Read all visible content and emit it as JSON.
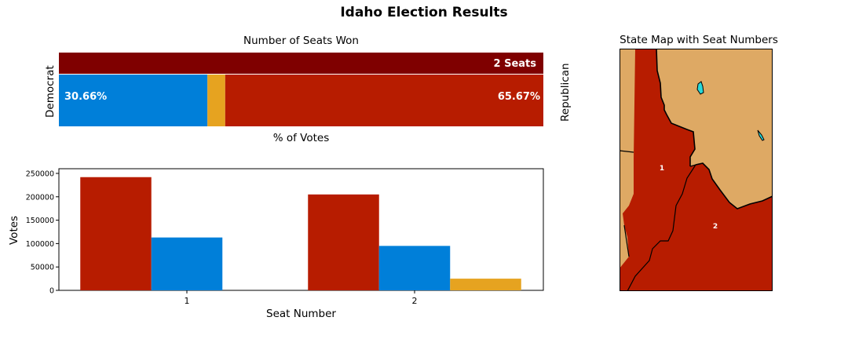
{
  "title": "Idaho Election Results",
  "colors": {
    "republican": "#b71c00",
    "democrat": "#007fd9",
    "other": "#e6a320",
    "seat_bar": "#7f0000",
    "map_land": "#dea964",
    "water": "#29d9d9"
  },
  "chart_data": [
    {
      "type": "bar",
      "orientation": "horizontal-stacked",
      "title": "Number of Seats Won",
      "xlabel": "% of Votes",
      "left_label": "Democrat",
      "right_label": "Republican",
      "seat_label": "2 Seats",
      "segments": [
        {
          "name": "Democrat",
          "value": 30.66,
          "label": "30.66%"
        },
        {
          "name": "Other",
          "value": 3.67
        },
        {
          "name": "Republican",
          "value": 65.67,
          "label": "65.67%"
        }
      ]
    },
    {
      "type": "bar",
      "xlabel": "Seat Number",
      "ylabel": "Votes",
      "categories": [
        "1",
        "2"
      ],
      "ylim": [
        0,
        260000
      ],
      "yticks": [
        "0",
        "50000",
        "100000",
        "150000",
        "200000",
        "250000"
      ],
      "series": [
        {
          "values": [
            242000,
            205000
          ]
        },
        {
          "values": [
            113000,
            95000
          ]
        },
        {
          "values": [
            0,
            25000
          ]
        }
      ]
    },
    {
      "type": "map",
      "title": "State Map with Seat Numbers",
      "districts": [
        "1",
        "2"
      ]
    }
  ]
}
